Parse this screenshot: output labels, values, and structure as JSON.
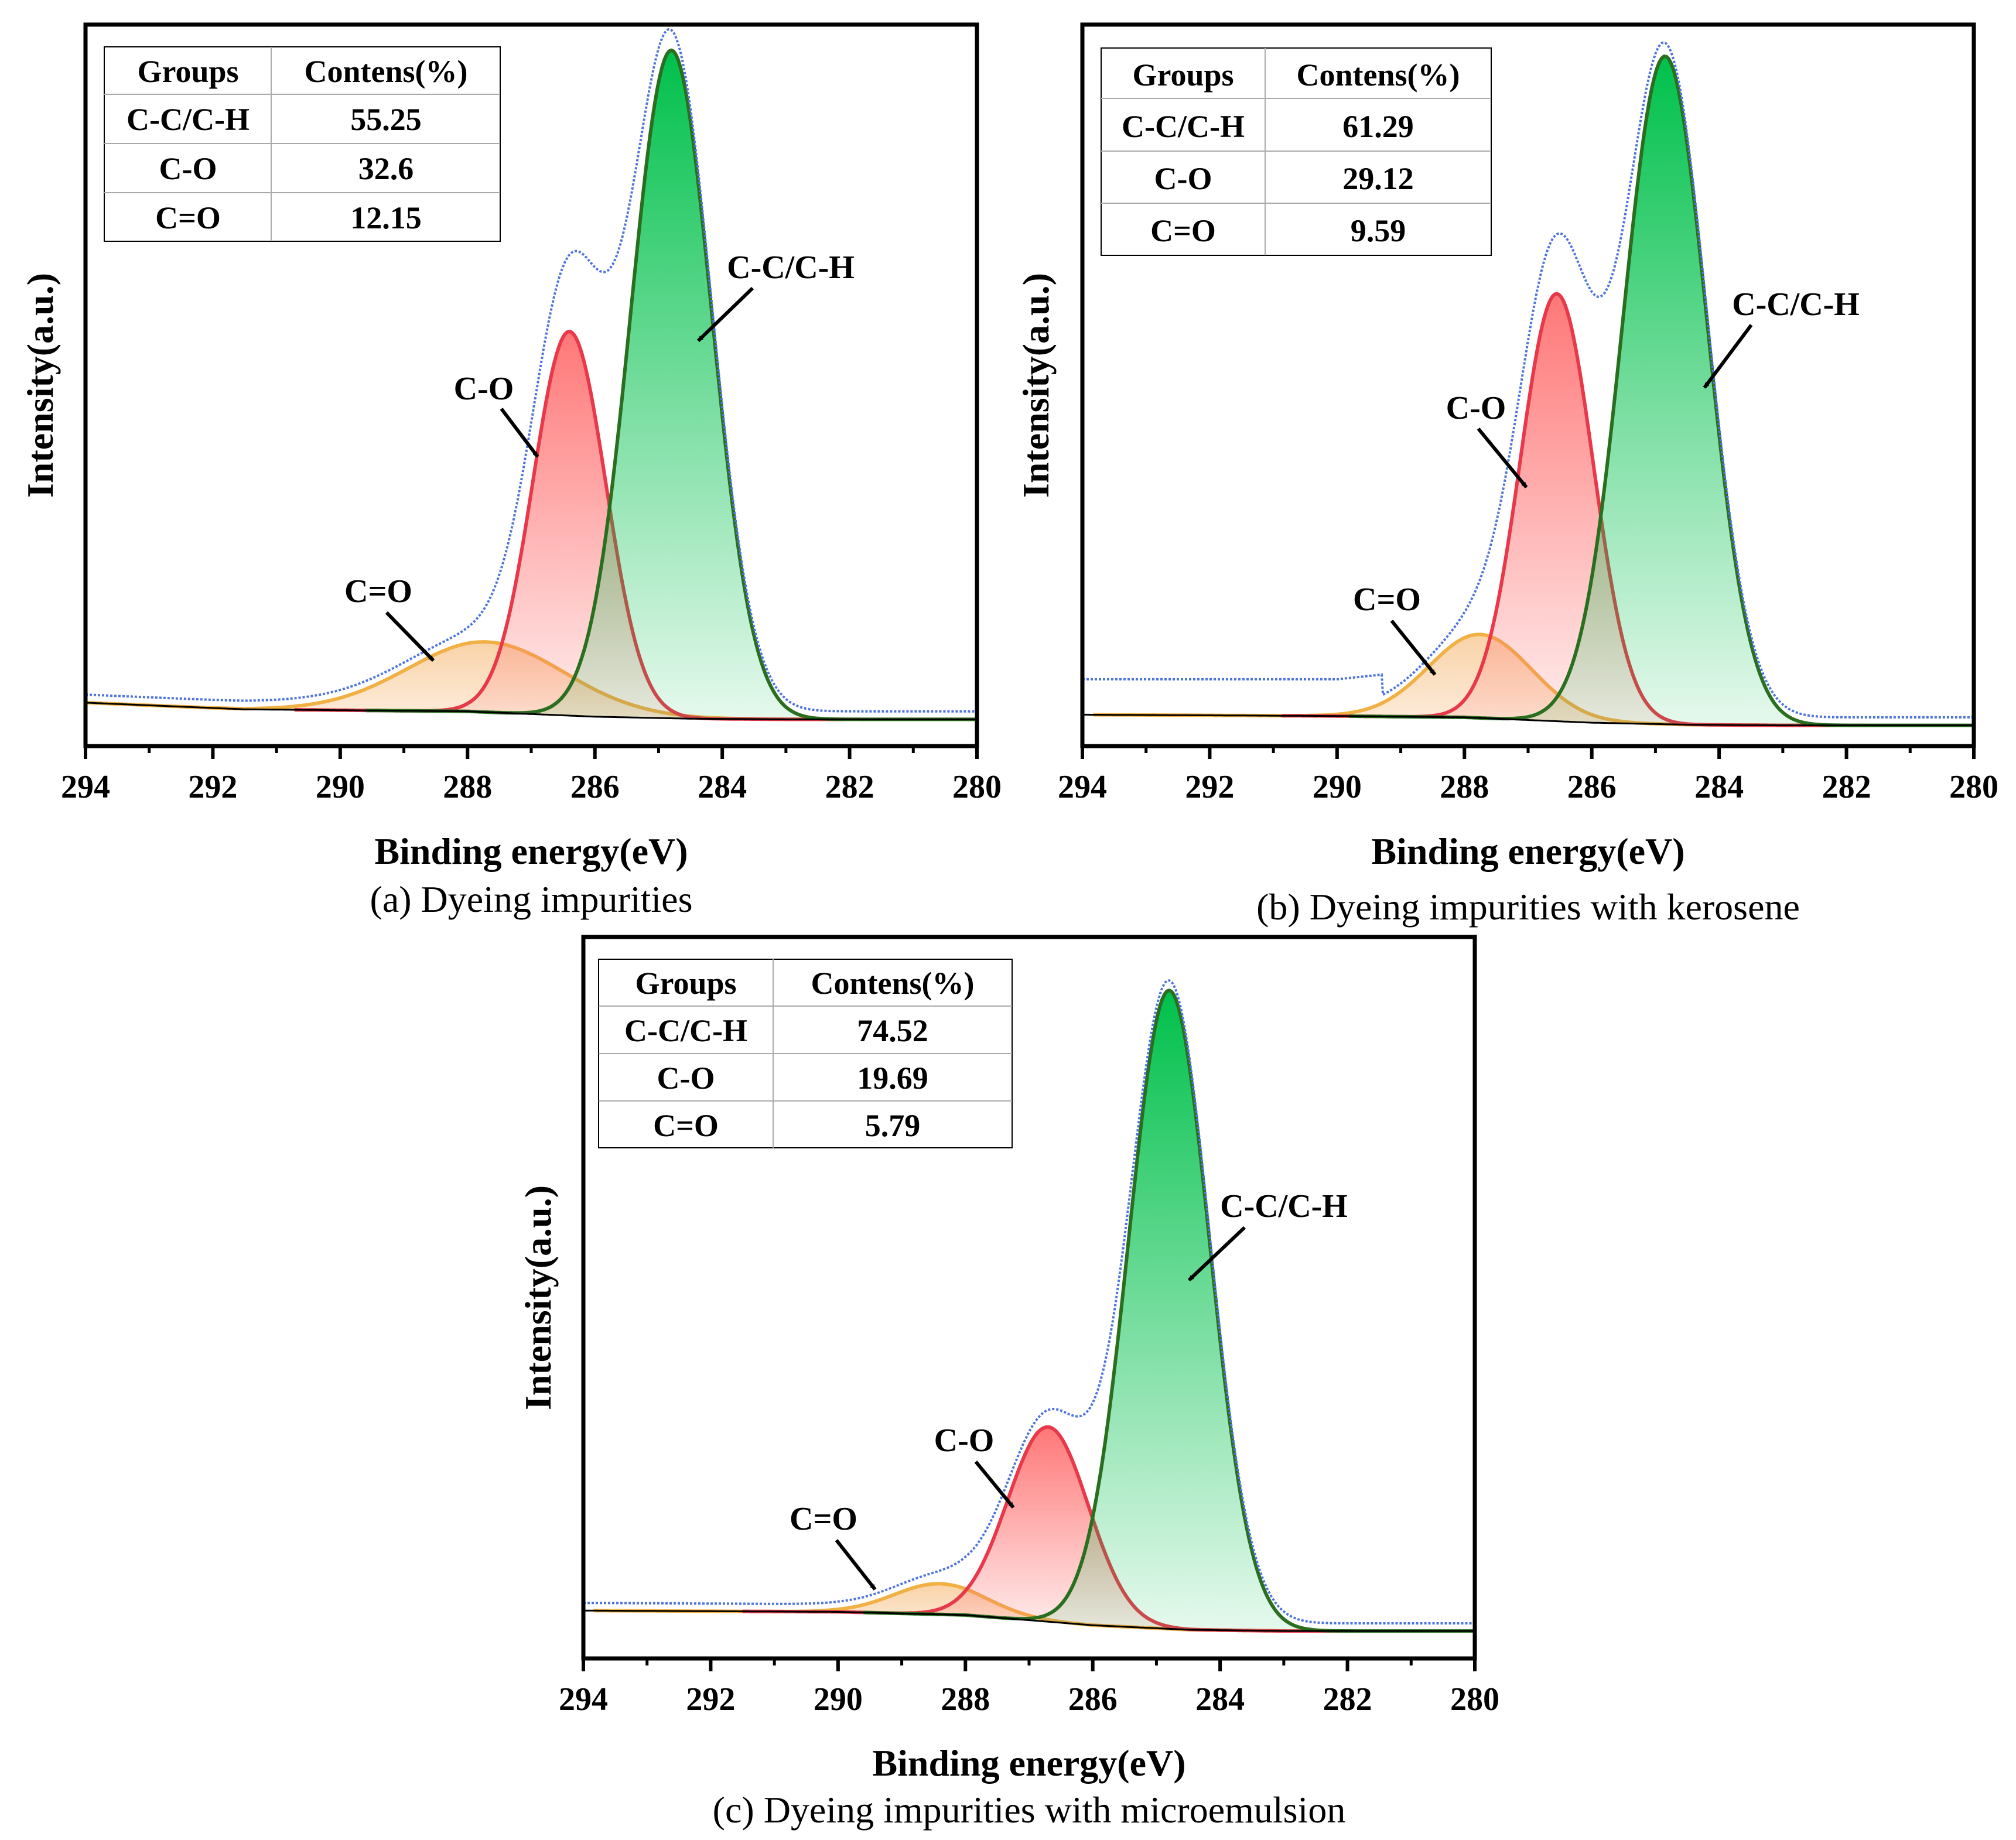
{
  "figure": {
    "axis_labels": {
      "x": "Binding energy(eV)",
      "y": "Intensity(a.u.)"
    },
    "colors": {
      "c_c": "#00c04b",
      "c_c_line": "#2a6e1f",
      "c_o": "#ff7070",
      "c_o_line": "#e8384a",
      "c_eq_o": "#f7c48b",
      "c_eq_o_line": "#f1b043",
      "envelope": "#4f74e0",
      "baseline": "#000000"
    }
  },
  "chart_data": [
    {
      "type": "line",
      "panel": "a",
      "caption": "(a) Dyeing impurities",
      "xlabel": "Binding energy(eV)",
      "ylabel": "Intensity(a.u.)",
      "xlim": [
        294,
        280
      ],
      "xticks": [
        "294",
        "292",
        "290",
        "288",
        "286",
        "284",
        "282",
        "280"
      ],
      "ylim": [
        0,
        1.08
      ],
      "baseline": {
        "x": [
          294,
          291.5,
          288,
          286,
          284.5,
          283,
          280
        ],
        "y": [
          0.065,
          0.055,
          0.052,
          0.044,
          0.041,
          0.04,
          0.04
        ]
      },
      "peaks": [
        {
          "name": "C-C/C-H",
          "center": 284.8,
          "height": 1.0,
          "fwhm": 1.5
        },
        {
          "name": "C-O",
          "center": 286.4,
          "height": 0.575,
          "fwhm": 1.35
        },
        {
          "name": "C=O",
          "center": 287.7,
          "height": 0.105,
          "fwhm": 2.9
        }
      ],
      "annotations": [
        {
          "text": "C-C/C-H",
          "peak": "C-C/C-H"
        },
        {
          "text": "C-O",
          "peak": "C-O"
        },
        {
          "text": "C=O",
          "peak": "C=O"
        }
      ],
      "table": {
        "headers": [
          "Groups",
          "Contens(%)"
        ],
        "rows": [
          [
            "C-C/C-H",
            "55.25"
          ],
          [
            "C-O",
            "32.6"
          ],
          [
            "C=O",
            "12.15"
          ]
        ]
      }
    },
    {
      "type": "line",
      "panel": "b",
      "caption": "(b) Dyeing impurities with kerosene",
      "xlabel": "Binding energy(eV)",
      "ylabel": "Intensity(a.u.)",
      "xlim": [
        294,
        280
      ],
      "xticks": [
        "294",
        "292",
        "290",
        "288",
        "286",
        "284",
        "282",
        "280"
      ],
      "ylim": [
        0,
        1.08
      ],
      "baseline": {
        "x": [
          294,
          290,
          288,
          286,
          284.5,
          283,
          280
        ],
        "y": [
          0.047,
          0.045,
          0.043,
          0.035,
          0.032,
          0.031,
          0.031
        ]
      },
      "envelope_floor": {
        "x": [
          294,
          290,
          289.3
        ],
        "y": [
          0.088,
          0.088,
          0.095
        ]
      },
      "peaks": [
        {
          "name": "C-C/C-H",
          "center": 284.85,
          "height": 1.0,
          "fwhm": 1.55
        },
        {
          "name": "C-O",
          "center": 286.55,
          "height": 0.64,
          "fwhm": 1.35
        },
        {
          "name": "C=O",
          "center": 287.75,
          "height": 0.125,
          "fwhm": 1.9
        }
      ],
      "annotations": [
        {
          "text": "C-C/C-H",
          "peak": "C-C/C-H"
        },
        {
          "text": "C-O",
          "peak": "C-O"
        },
        {
          "text": "C=O",
          "peak": "C=O"
        }
      ],
      "table": {
        "headers": [
          "Groups",
          "Contens(%)"
        ],
        "rows": [
          [
            "C-C/C-H",
            "61.29"
          ],
          [
            "C-O",
            "29.12"
          ],
          [
            "C=O",
            "9.59"
          ]
        ]
      }
    },
    {
      "type": "line",
      "panel": "c",
      "caption": "(c) Dyeing impurities with microemulsion",
      "xlabel": "Binding energy(eV)",
      "ylabel": "Intensity(a.u.)",
      "xlim": [
        294,
        280
      ],
      "xticks": [
        "294",
        "292",
        "290",
        "288",
        "286",
        "284",
        "282",
        "280"
      ],
      "ylim": [
        0,
        1.13
      ],
      "baseline": {
        "x": [
          294,
          290,
          288,
          286,
          284.5,
          283,
          280
        ],
        "y": [
          0.075,
          0.073,
          0.068,
          0.052,
          0.045,
          0.043,
          0.043
        ]
      },
      "peaks": [
        {
          "name": "C-C/C-H",
          "center": 284.8,
          "height": 1.0,
          "fwhm": 1.5
        },
        {
          "name": "C-O",
          "center": 286.7,
          "height": 0.305,
          "fwhm": 1.5
        },
        {
          "name": "C=O",
          "center": 288.4,
          "height": 0.048,
          "fwhm": 1.7
        }
      ],
      "annotations": [
        {
          "text": "C-C/C-H",
          "peak": "C-C/C-H"
        },
        {
          "text": "C-O",
          "peak": "C-O"
        },
        {
          "text": "C=O",
          "peak": "C=O"
        }
      ],
      "table": {
        "headers": [
          "Groups",
          "Contens(%)"
        ],
        "rows": [
          [
            "C-C/C-H",
            "74.52"
          ],
          [
            "C-O",
            "19.69"
          ],
          [
            "C=O",
            "5.79"
          ]
        ]
      }
    }
  ]
}
